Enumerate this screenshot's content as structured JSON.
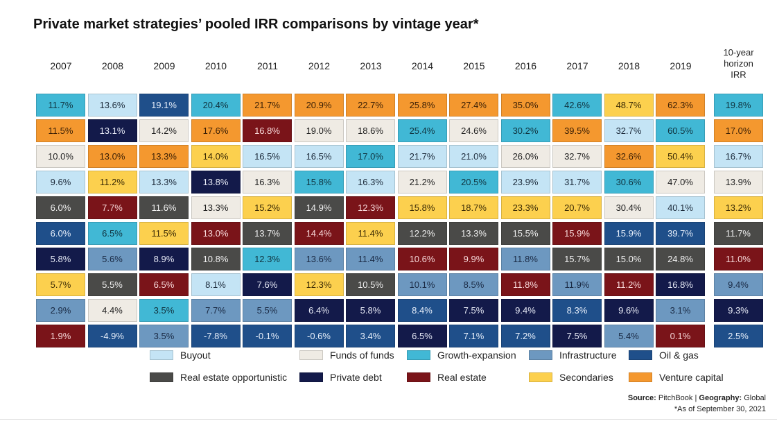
{
  "chart_data": {
    "type": "table",
    "title": "Private market strategies’ pooled IRR comparisons by vintage year*",
    "columns": [
      "2007",
      "2008",
      "2009",
      "2010",
      "2011",
      "2012",
      "2013",
      "2014",
      "2015",
      "2016",
      "2017",
      "2018",
      "2019"
    ],
    "horizon_label_lines": [
      "10-year",
      "horizon",
      "IRR"
    ],
    "categories": {
      "B": {
        "name": "Buyout",
        "color": "#c4e4f5",
        "text": "#1c2a3a"
      },
      "F": {
        "name": "Funds of funds",
        "color": "#efebe4",
        "text": "#222222"
      },
      "G": {
        "name": "Growth-expansion",
        "color": "#41b8d5",
        "text": "#10333f"
      },
      "I": {
        "name": "Infrastructure",
        "color": "#6d98c0",
        "text": "#1a2a44"
      },
      "O": {
        "name": "Oil & gas",
        "color": "#1f4f8a",
        "text": "#e6eefa"
      },
      "R": {
        "name": "Real estate opportunistic",
        "color": "#4a4a48",
        "text": "#f0f0f0"
      },
      "P": {
        "name": "Private debt",
        "color": "#131a4a",
        "text": "#e6e9f5"
      },
      "E": {
        "name": "Real estate",
        "color": "#7a1419",
        "text": "#f7d9da"
      },
      "S": {
        "name": "Secondaries",
        "color": "#fcd04e",
        "text": "#3a2a05"
      },
      "V": {
        "name": "Venture capital",
        "color": "#f4982f",
        "text": "#3a1f05"
      }
    },
    "legend_order": [
      [
        "B",
        "F",
        "G",
        "I",
        "O"
      ],
      [
        "R",
        "P",
        "E",
        "S",
        "V"
      ]
    ],
    "legend_placement": "bottom",
    "vintage_cells": [
      [
        {
          "v": "11.7%",
          "c": "G"
        },
        {
          "v": "11.5%",
          "c": "V"
        },
        {
          "v": "10.0%",
          "c": "F"
        },
        {
          "v": "9.6%",
          "c": "B"
        },
        {
          "v": "6.0%",
          "c": "R"
        },
        {
          "v": "6.0%",
          "c": "O"
        },
        {
          "v": "5.8%",
          "c": "P"
        },
        {
          "v": "5.7%",
          "c": "S"
        },
        {
          "v": "2.9%",
          "c": "I"
        },
        {
          "v": "1.9%",
          "c": "E"
        }
      ],
      [
        {
          "v": "13.6%",
          "c": "B"
        },
        {
          "v": "13.1%",
          "c": "P"
        },
        {
          "v": "13.0%",
          "c": "V"
        },
        {
          "v": "11.2%",
          "c": "S"
        },
        {
          "v": "7.7%",
          "c": "E"
        },
        {
          "v": "6.5%",
          "c": "G"
        },
        {
          "v": "5.6%",
          "c": "I"
        },
        {
          "v": "5.5%",
          "c": "R"
        },
        {
          "v": "4.4%",
          "c": "F"
        },
        {
          "v": "-4.9%",
          "c": "O"
        }
      ],
      [
        {
          "v": "19.1%",
          "c": "O"
        },
        {
          "v": "14.2%",
          "c": "F"
        },
        {
          "v": "13.3%",
          "c": "V"
        },
        {
          "v": "13.3%",
          "c": "B"
        },
        {
          "v": "11.6%",
          "c": "R"
        },
        {
          "v": "11.5%",
          "c": "S"
        },
        {
          "v": "8.9%",
          "c": "P"
        },
        {
          "v": "6.5%",
          "c": "E"
        },
        {
          "v": "3.5%",
          "c": "G"
        },
        {
          "v": "3.5%",
          "c": "I"
        }
      ],
      [
        {
          "v": "20.4%",
          "c": "G"
        },
        {
          "v": "17.6%",
          "c": "V"
        },
        {
          "v": "14.0%",
          "c": "S"
        },
        {
          "v": "13.8%",
          "c": "P"
        },
        {
          "v": "13.3%",
          "c": "F"
        },
        {
          "v": "13.0%",
          "c": "E"
        },
        {
          "v": "10.8%",
          "c": "R"
        },
        {
          "v": "8.1%",
          "c": "B"
        },
        {
          "v": "7.7%",
          "c": "I"
        },
        {
          "v": "-7.8%",
          "c": "O"
        }
      ],
      [
        {
          "v": "21.7%",
          "c": "V"
        },
        {
          "v": "16.8%",
          "c": "E"
        },
        {
          "v": "16.5%",
          "c": "B"
        },
        {
          "v": "16.3%",
          "c": "F"
        },
        {
          "v": "15.2%",
          "c": "S"
        },
        {
          "v": "13.7%",
          "c": "R"
        },
        {
          "v": "12.3%",
          "c": "G"
        },
        {
          "v": "7.6%",
          "c": "P"
        },
        {
          "v": "5.5%",
          "c": "I"
        },
        {
          "v": "-0.1%",
          "c": "O"
        }
      ],
      [
        {
          "v": "20.9%",
          "c": "V"
        },
        {
          "v": "19.0%",
          "c": "F"
        },
        {
          "v": "16.5%",
          "c": "B"
        },
        {
          "v": "15.8%",
          "c": "G"
        },
        {
          "v": "14.9%",
          "c": "R"
        },
        {
          "v": "14.4%",
          "c": "E"
        },
        {
          "v": "13.6%",
          "c": "I"
        },
        {
          "v": "12.3%",
          "c": "S"
        },
        {
          "v": "6.4%",
          "c": "P"
        },
        {
          "v": "-0.6%",
          "c": "O"
        }
      ],
      [
        {
          "v": "22.7%",
          "c": "V"
        },
        {
          "v": "18.6%",
          "c": "F"
        },
        {
          "v": "17.0%",
          "c": "G"
        },
        {
          "v": "16.3%",
          "c": "B"
        },
        {
          "v": "12.3%",
          "c": "E"
        },
        {
          "v": "11.4%",
          "c": "S"
        },
        {
          "v": "11.4%",
          "c": "I"
        },
        {
          "v": "10.5%",
          "c": "R"
        },
        {
          "v": "5.8%",
          "c": "P"
        },
        {
          "v": "3.4%",
          "c": "O"
        }
      ],
      [
        {
          "v": "25.8%",
          "c": "V"
        },
        {
          "v": "25.4%",
          "c": "G"
        },
        {
          "v": "21.7%",
          "c": "B"
        },
        {
          "v": "21.2%",
          "c": "F"
        },
        {
          "v": "15.8%",
          "c": "S"
        },
        {
          "v": "12.2%",
          "c": "R"
        },
        {
          "v": "10.6%",
          "c": "E"
        },
        {
          "v": "10.1%",
          "c": "I"
        },
        {
          "v": "8.4%",
          "c": "O"
        },
        {
          "v": "6.5%",
          "c": "P"
        }
      ],
      [
        {
          "v": "27.4%",
          "c": "V"
        },
        {
          "v": "24.6%",
          "c": "F"
        },
        {
          "v": "21.0%",
          "c": "B"
        },
        {
          "v": "20.5%",
          "c": "G"
        },
        {
          "v": "18.7%",
          "c": "S"
        },
        {
          "v": "13.3%",
          "c": "R"
        },
        {
          "v": "9.9%",
          "c": "E"
        },
        {
          "v": "8.5%",
          "c": "I"
        },
        {
          "v": "7.5%",
          "c": "P"
        },
        {
          "v": "7.1%",
          "c": "O"
        }
      ],
      [
        {
          "v": "35.0%",
          "c": "V"
        },
        {
          "v": "30.2%",
          "c": "G"
        },
        {
          "v": "26.0%",
          "c": "F"
        },
        {
          "v": "23.9%",
          "c": "B"
        },
        {
          "v": "23.3%",
          "c": "S"
        },
        {
          "v": "15.5%",
          "c": "R"
        },
        {
          "v": "11.8%",
          "c": "I"
        },
        {
          "v": "11.8%",
          "c": "E"
        },
        {
          "v": "9.4%",
          "c": "P"
        },
        {
          "v": "7.2%",
          "c": "O"
        }
      ],
      [
        {
          "v": "42.6%",
          "c": "G"
        },
        {
          "v": "39.5%",
          "c": "V"
        },
        {
          "v": "32.7%",
          "c": "F"
        },
        {
          "v": "31.7%",
          "c": "B"
        },
        {
          "v": "20.7%",
          "c": "S"
        },
        {
          "v": "15.9%",
          "c": "E"
        },
        {
          "v": "15.7%",
          "c": "R"
        },
        {
          "v": "11.9%",
          "c": "I"
        },
        {
          "v": "8.3%",
          "c": "O"
        },
        {
          "v": "7.5%",
          "c": "P"
        }
      ],
      [
        {
          "v": "48.7%",
          "c": "S"
        },
        {
          "v": "32.7%",
          "c": "B"
        },
        {
          "v": "32.6%",
          "c": "V"
        },
        {
          "v": "30.6%",
          "c": "G"
        },
        {
          "v": "30.4%",
          "c": "F"
        },
        {
          "v": "15.9%",
          "c": "O"
        },
        {
          "v": "15.0%",
          "c": "R"
        },
        {
          "v": "11.2%",
          "c": "E"
        },
        {
          "v": "9.6%",
          "c": "P"
        },
        {
          "v": "5.4%",
          "c": "I"
        }
      ],
      [
        {
          "v": "62.3%",
          "c": "V"
        },
        {
          "v": "60.5%",
          "c": "G"
        },
        {
          "v": "50.4%",
          "c": "S"
        },
        {
          "v": "47.0%",
          "c": "F"
        },
        {
          "v": "40.1%",
          "c": "B"
        },
        {
          "v": "39.7%",
          "c": "O"
        },
        {
          "v": "24.8%",
          "c": "R"
        },
        {
          "v": "16.8%",
          "c": "P"
        },
        {
          "v": "3.1%",
          "c": "I"
        },
        {
          "v": "0.1%",
          "c": "E"
        }
      ]
    ],
    "horizon_cells": [
      {
        "v": "19.8%",
        "c": "G"
      },
      {
        "v": "17.0%",
        "c": "V"
      },
      {
        "v": "16.7%",
        "c": "B"
      },
      {
        "v": "13.9%",
        "c": "F"
      },
      {
        "v": "13.2%",
        "c": "S"
      },
      {
        "v": "11.7%",
        "c": "R"
      },
      {
        "v": "11.0%",
        "c": "E"
      },
      {
        "v": "9.4%",
        "c": "I"
      },
      {
        "v": "9.3%",
        "c": "P"
      },
      {
        "v": "2.5%",
        "c": "O"
      }
    ]
  },
  "footer": {
    "source_label": "Source:",
    "source_value": "PitchBook",
    "separator": "|",
    "geography_label": "Geography:",
    "geography_value": "Global",
    "note": "*As of September 30, 2021"
  }
}
